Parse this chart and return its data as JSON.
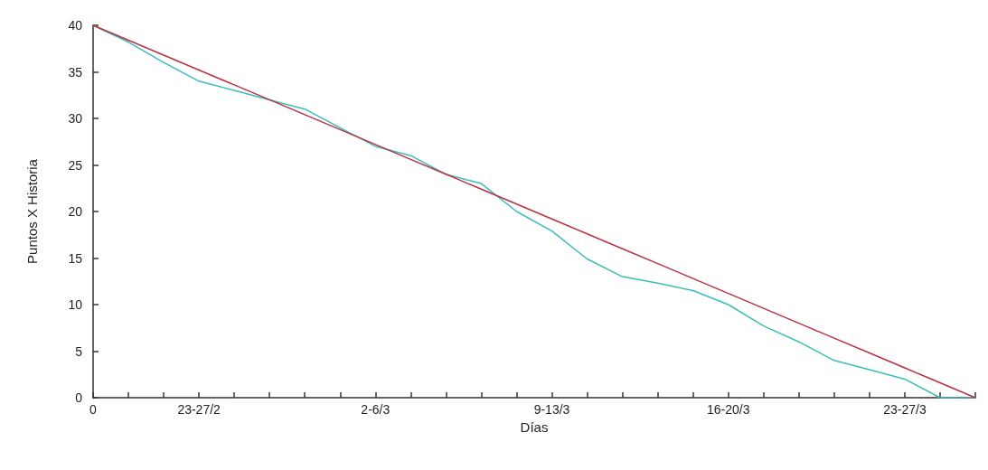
{
  "chart_data": {
    "type": "line",
    "xlabel": "Días",
    "ylabel": "Puntos X Historia",
    "ylim": [
      0,
      40
    ],
    "categories": [
      "0",
      null,
      null,
      "23-27/2",
      null,
      null,
      null,
      null,
      "2-6/3",
      null,
      null,
      null,
      null,
      "9-13/3",
      null,
      null,
      null,
      null,
      "16-20/3",
      null,
      null,
      null,
      null,
      "23-27/3",
      null,
      null
    ],
    "yticks": [
      0,
      5,
      10,
      15,
      20,
      25,
      30,
      35,
      40
    ],
    "grid": false,
    "marker": "none",
    "line_style": "solid",
    "series": [
      {
        "color": "#b8323f",
        "values": [
          40,
          38.4,
          36.8,
          35.2,
          33.6,
          32,
          30.4,
          28.8,
          27.2,
          25.6,
          24,
          22.4,
          20.8,
          19.2,
          17.6,
          16,
          14.4,
          12.8,
          11.2,
          9.6,
          8,
          6.4,
          4.8,
          3.2,
          1.6,
          0
        ]
      },
      {
        "color": "#3cbcbc",
        "values": [
          40,
          38.2,
          36,
          34,
          33,
          32,
          31,
          29,
          27,
          26,
          24,
          23,
          20,
          17.9,
          14.9,
          13,
          12.3,
          11.5,
          10,
          7.7,
          6,
          4,
          3,
          2,
          0,
          0
        ]
      }
    ]
  }
}
